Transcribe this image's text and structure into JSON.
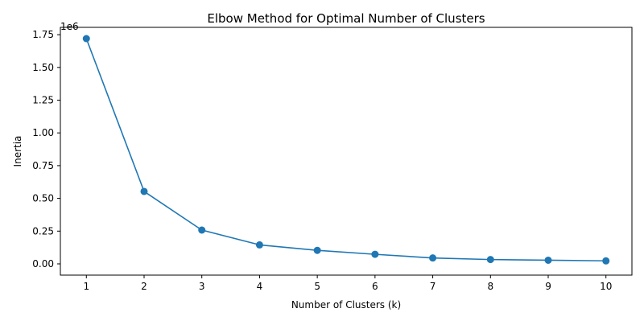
{
  "chart_data": {
    "type": "line",
    "title": "Elbow Method for Optimal Number of Clusters",
    "xlabel": "Number of Clusters (k)",
    "ylabel": "Inertia",
    "y_offset_label": "1e6",
    "x": [
      1,
      2,
      3,
      4,
      5,
      6,
      7,
      8,
      9,
      10
    ],
    "series": [
      {
        "values": [
          1720000,
          553000,
          258000,
          145000,
          103000,
          73000,
          45000,
          33000,
          28000,
          23000
        ]
      }
    ],
    "xlim": [
      0.55,
      10.45
    ],
    "ylim": [
      -86000,
      1806000
    ],
    "x_ticks": [
      1,
      2,
      3,
      4,
      5,
      6,
      7,
      8,
      9,
      10
    ],
    "x_tick_labels": [
      "1",
      "2",
      "3",
      "4",
      "5",
      "6",
      "7",
      "8",
      "9",
      "10"
    ],
    "y_ticks": [
      0,
      250000,
      500000,
      750000,
      1000000,
      1250000,
      1500000,
      1750000
    ],
    "y_tick_labels": [
      "0.00",
      "0.25",
      "0.50",
      "0.75",
      "1.00",
      "1.25",
      "1.50",
      "1.75"
    ],
    "grid": false,
    "colors": {
      "line": "#1f77b4",
      "marker": "#1f77b4"
    }
  }
}
